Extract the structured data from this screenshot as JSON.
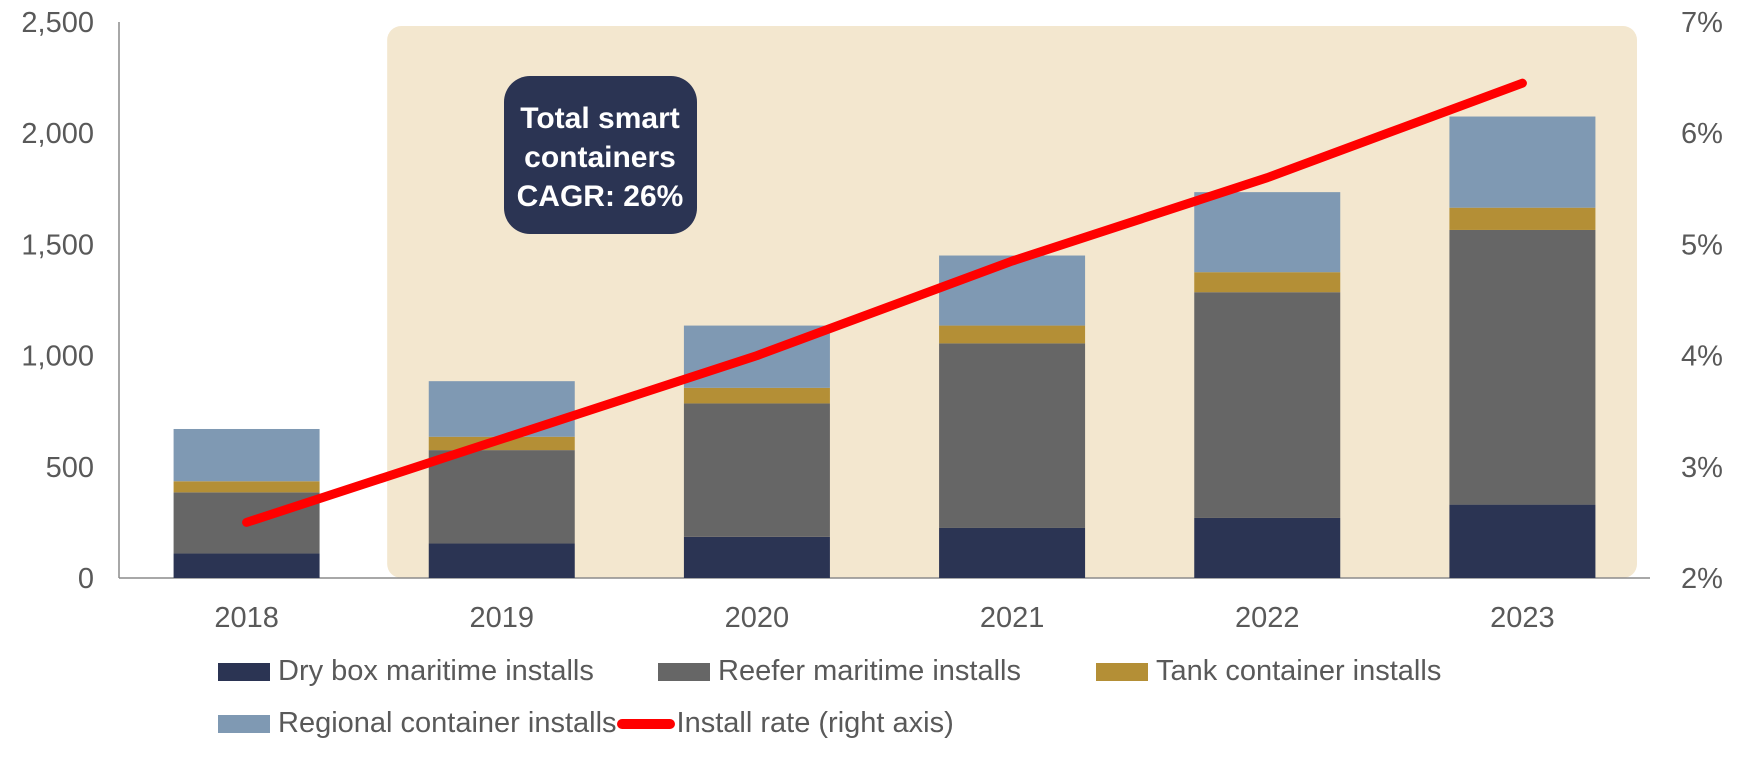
{
  "chart_data": {
    "type": "bar",
    "stacked": true,
    "categories": [
      "2018",
      "2019",
      "2020",
      "2021",
      "2022",
      "2023"
    ],
    "series": [
      {
        "name": "Dry box maritime installs",
        "color": "#2b3453",
        "values": [
          110,
          155,
          185,
          225,
          270,
          330
        ]
      },
      {
        "name": "Reefer maritime installs",
        "color": "#666666",
        "values": [
          275,
          420,
          600,
          830,
          1015,
          1235
        ]
      },
      {
        "name": "Tank container installs",
        "color": "#b48f36",
        "values": [
          50,
          60,
          70,
          80,
          90,
          100
        ]
      },
      {
        "name": "Regional container installs",
        "color": "#7f99b3",
        "values": [
          235,
          250,
          280,
          315,
          360,
          410
        ]
      }
    ],
    "line": {
      "name": "Install rate (right axis)",
      "color": "#ff0000",
      "axis": "right",
      "values": [
        2.5,
        3.25,
        4.0,
        4.85,
        5.6,
        6.45
      ]
    },
    "y_left": {
      "ylim": [
        0,
        2500
      ],
      "ticks": [
        "0",
        "500",
        "1,000",
        "1,500",
        "2,000",
        "2,500"
      ]
    },
    "y_right": {
      "ylim": [
        2,
        7
      ],
      "ticks": [
        "2%",
        "3%",
        "4%",
        "5%",
        "6%",
        "7%"
      ]
    },
    "highlight": {
      "from_category": "2019",
      "to_category": "2023",
      "color": "#f3e7cf"
    },
    "annotation": {
      "lines": [
        "Total smart",
        "containers",
        "CAGR: 26%"
      ],
      "background": "#2b3453"
    },
    "legend_position": "bottom"
  }
}
